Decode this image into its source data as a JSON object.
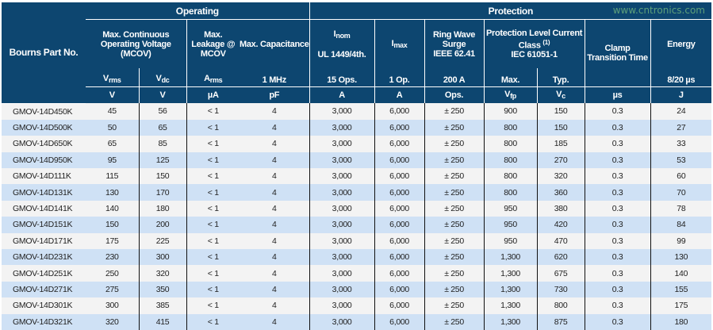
{
  "header": {
    "group_operating": "Operating",
    "group_protection": "Protection",
    "part": "Bourns Part No.",
    "mcov": "Max. Continuous Operating Voltage (MCOV)",
    "leakage": "Max. Leakage @ MCOV",
    "capacitance": "Max. Capacitance",
    "inom": "I",
    "inom_sub": "nom",
    "inom_std": "UL 1449/4th.",
    "imax": "I",
    "imax_sub": "max",
    "ring": "Ring Wave Surge",
    "ring_std": "IEEE 62.41",
    "prot": "Protection Level Current Class",
    "prot_note": "(1)",
    "prot_std": "IEC 61051-1",
    "clamp": "Clamp Transition Time",
    "energy": "Energy",
    "sub": [
      "V",
      "rms",
      "V",
      "dc",
      "A",
      "rms",
      "1 MHz",
      "15 Ops.",
      "1 Op.",
      "200 A",
      "Max.",
      "Typ.",
      "",
      "8/20 µs"
    ],
    "units": [
      "V",
      "V",
      "µA",
      "pF",
      "A",
      "A",
      "Ops.",
      "V",
      "fp",
      "V",
      "c",
      "µs",
      "J"
    ]
  },
  "rows": [
    [
      "GMOV-14D450K",
      "45",
      "56",
      "< 1",
      "4",
      "3,000",
      "6,000",
      "± 250",
      "900",
      "150",
      "0.3",
      "24"
    ],
    [
      "GMOV-14D500K",
      "50",
      "65",
      "< 1",
      "4",
      "3,000",
      "6,000",
      "± 250",
      "800",
      "150",
      "0.3",
      "27"
    ],
    [
      "GMOV-14D650K",
      "65",
      "85",
      "< 1",
      "4",
      "3,000",
      "6,000",
      "± 250",
      "800",
      "185",
      "0.3",
      "33"
    ],
    [
      "GMOV-14D950K",
      "95",
      "125",
      "< 1",
      "4",
      "3,000",
      "6,000",
      "± 250",
      "800",
      "270",
      "0.3",
      "53"
    ],
    [
      "GMOV-14D111K",
      "115",
      "150",
      "< 1",
      "4",
      "3,000",
      "6,000",
      "± 250",
      "800",
      "320",
      "0.3",
      "60"
    ],
    [
      "GMOV-14D131K",
      "130",
      "170",
      "< 1",
      "4",
      "3,000",
      "6,000",
      "± 250",
      "800",
      "360",
      "0.3",
      "70"
    ],
    [
      "GMOV-14D141K",
      "140",
      "180",
      "< 1",
      "4",
      "3,000",
      "6,000",
      "± 250",
      "950",
      "380",
      "0.3",
      "78"
    ],
    [
      "GMOV-14D151K",
      "150",
      "200",
      "< 1",
      "4",
      "3,000",
      "6,000",
      "± 250",
      "950",
      "420",
      "0.3",
      "84"
    ],
    [
      "GMOV-14D171K",
      "175",
      "225",
      "< 1",
      "4",
      "3,000",
      "6,000",
      "± 250",
      "950",
      "470",
      "0.3",
      "99"
    ],
    [
      "GMOV-14D231K",
      "230",
      "300",
      "< 1",
      "4",
      "3,000",
      "6,000",
      "± 250",
      "1,300",
      "620",
      "0.3",
      "130"
    ],
    [
      "GMOV-14D251K",
      "250",
      "320",
      "< 1",
      "4",
      "3,000",
      "6,000",
      "± 250",
      "1,300",
      "675",
      "0.3",
      "140"
    ],
    [
      "GMOV-14D271K",
      "275",
      "350",
      "< 1",
      "4",
      "3,000",
      "6,000",
      "± 250",
      "1,300",
      "730",
      "0.3",
      "155"
    ],
    [
      "GMOV-14D301K",
      "300",
      "385",
      "< 1",
      "4",
      "3,000",
      "6,000",
      "± 250",
      "1,300",
      "800",
      "0.3",
      "175"
    ],
    [
      "GMOV-14D321K",
      "320",
      "415",
      "< 1",
      "4",
      "3,000",
      "6,000",
      "± 250",
      "1,300",
      "875",
      "0.3",
      "180"
    ]
  ],
  "watermark": "www.cntronics.com",
  "colors": {
    "header": "#0d4670",
    "row_alt": "#cfe1f5",
    "row": "#f3f3f3"
  }
}
